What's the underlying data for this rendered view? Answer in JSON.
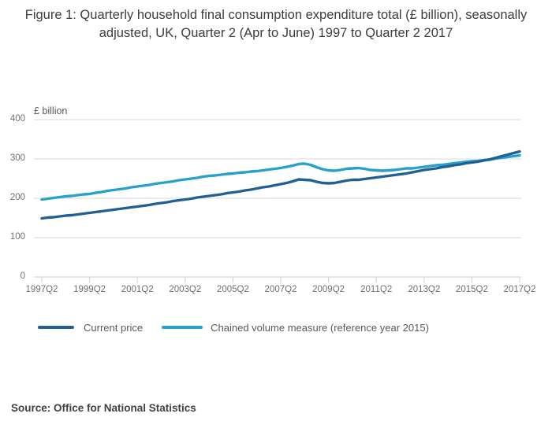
{
  "title": "Figure 1: Quarterly household final consumption expenditure total (£ billion), seasonally adjusted, UK, Quarter 2 (Apr to June) 1997 to Quarter 2 2017",
  "source": "Source: Office for National Statistics",
  "chart_data": {
    "type": "line",
    "title": "Figure 1: Quarterly household final consumption expenditure total (£ billion), seasonally adjusted, UK, Quarter 2 (Apr to June) 1997 to Quarter 2 2017",
    "unit_label": "£ billion",
    "x_frequency": "quarterly",
    "x_start": "1997Q2",
    "x_end": "2017Q2",
    "xtick_labels": [
      "1997Q2",
      "1999Q2",
      "2001Q2",
      "2003Q2",
      "2005Q2",
      "2007Q2",
      "2009Q2",
      "2011Q2",
      "2013Q2",
      "2015Q2",
      "2017Q2"
    ],
    "ylim": [
      0,
      400
    ],
    "yticks": [
      0,
      100,
      200,
      300,
      400
    ],
    "grid": "horizontal-only",
    "legend_position": "bottom",
    "axis_color": "#c5d3de",
    "gridline_color": "#d9d9d9",
    "series": [
      {
        "name": "Current price",
        "color": "#206095",
        "values": [
          149,
          151,
          152,
          154,
          156,
          157,
          159,
          161,
          163,
          165,
          167,
          169,
          171,
          173,
          175,
          177,
          179,
          181,
          183,
          186,
          188,
          190,
          193,
          195,
          197,
          199,
          202,
          204,
          206,
          208,
          210,
          213,
          215,
          217,
          220,
          222,
          225,
          228,
          230,
          233,
          236,
          239,
          243,
          248,
          247,
          246,
          242,
          239,
          238,
          239,
          242,
          245,
          247,
          247,
          249,
          251,
          253,
          255,
          257,
          259,
          261,
          263,
          266,
          269,
          272,
          274,
          276,
          279,
          281,
          284,
          286,
          289,
          291,
          293,
          296,
          299,
          303,
          307,
          311,
          315,
          319
        ]
      },
      {
        "name": "Chained volume measure (reference year 2015)",
        "color": "#27a0cc",
        "values": [
          197,
          199,
          201,
          203,
          205,
          206,
          208,
          210,
          211,
          214,
          216,
          219,
          221,
          223,
          225,
          228,
          230,
          232,
          234,
          237,
          239,
          241,
          243,
          246,
          248,
          250,
          252,
          255,
          257,
          258,
          260,
          262,
          263,
          265,
          266,
          268,
          269,
          271,
          273,
          275,
          277,
          280,
          283,
          287,
          288,
          285,
          279,
          274,
          271,
          270,
          272,
          275,
          276,
          277,
          275,
          272,
          271,
          270,
          271,
          272,
          274,
          276,
          276,
          278,
          280,
          282,
          284,
          285,
          287,
          289,
          291,
          293,
          294,
          295,
          297,
          298,
          301,
          303,
          305,
          307,
          309
        ]
      }
    ]
  }
}
